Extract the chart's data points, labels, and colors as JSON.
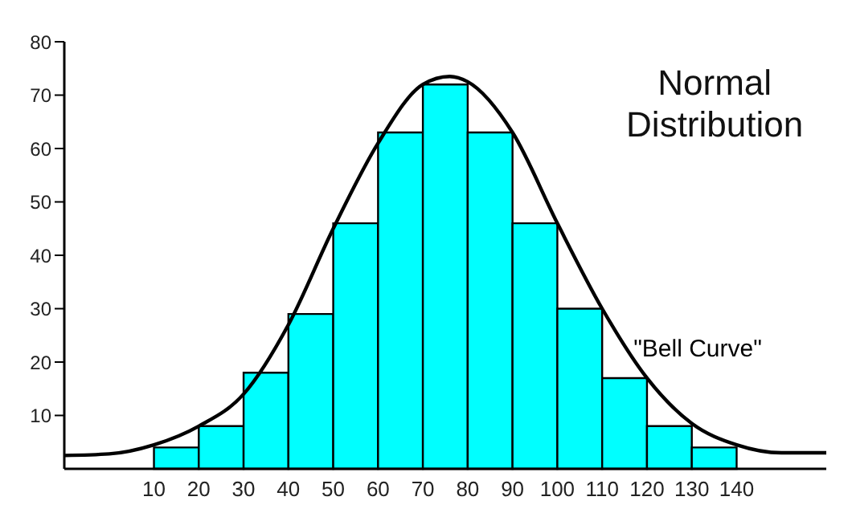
{
  "chart_data": {
    "type": "histogram",
    "title": "Normal Distribution",
    "bins": [
      10,
      20,
      30,
      40,
      50,
      60,
      70,
      80,
      90,
      100,
      110,
      120,
      130,
      140
    ],
    "values": [
      4,
      8,
      18,
      29,
      46,
      63,
      72,
      63,
      46,
      30,
      17,
      8,
      4
    ],
    "color": "#00ffff",
    "series": [
      {
        "type": "line",
        "name": "\"Bell Curve\"",
        "color": "#000000",
        "x": [
          -10,
          0,
          10,
          20,
          30,
          40,
          50,
          60,
          70,
          76,
          80,
          90,
          100,
          110,
          120,
          130,
          140,
          150,
          160
        ],
        "values": [
          2.5,
          2.8,
          4.5,
          8,
          14,
          27,
          45,
          61,
          72,
          73.5,
          72.5,
          63,
          46,
          30,
          17,
          8.5,
          4.5,
          3,
          3
        ]
      }
    ],
    "xlim": [
      -10,
      160
    ],
    "ylim": [
      0,
      80
    ],
    "xticks": [
      10,
      20,
      30,
      40,
      50,
      60,
      70,
      80,
      90,
      100,
      110,
      120,
      130,
      140
    ],
    "yticks": [
      10,
      20,
      30,
      40,
      50,
      60,
      70,
      80
    ]
  }
}
